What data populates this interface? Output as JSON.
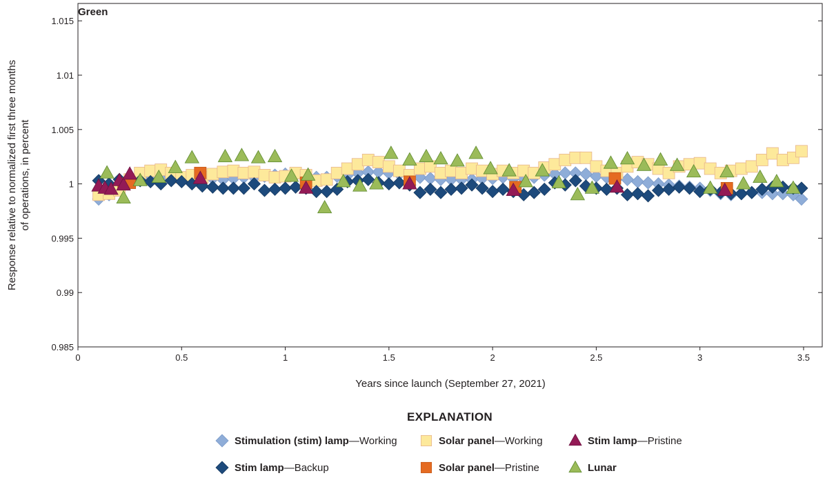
{
  "chart_data": {
    "type": "scatter",
    "title": "Green",
    "xlabel": "Years since launch (September 27, 2021)",
    "ylabel": [
      "Response relative to normalized first three months",
      "of operations, in percent"
    ],
    "xlim": [
      0,
      3.59
    ],
    "ylim": [
      0.985,
      1.0166
    ],
    "xticks": [
      0,
      0.5,
      1,
      1.5,
      2,
      2.5,
      3,
      3.5
    ],
    "xtick_labels": [
      "0",
      "0.5",
      "1",
      "1.5",
      "2",
      "2.5",
      "3",
      "3.5"
    ],
    "yticks": [
      0.985,
      0.99,
      0.995,
      1,
      1.005,
      1.01,
      1.015
    ],
    "ytick_labels": [
      "0.985",
      "0.99",
      "0.995",
      "1",
      "1.005",
      "1.01",
      "1.015"
    ],
    "grid": false,
    "legend": {
      "title": "EXPLANATION",
      "placement": "bottom"
    },
    "series": [
      {
        "name": "Stimulation (stim) lamp—Working",
        "name_bold": "Stimulation (stim) lamp",
        "name_rest": "—Working",
        "marker": "diamond",
        "color": "#8fadd8",
        "edge": "#7b9bc9",
        "points": [
          [
            0.1,
            0.9986
          ],
          [
            0.15,
            0.999
          ],
          [
            0.2,
            0.9996
          ],
          [
            0.25,
            1.0001
          ],
          [
            0.3,
            1.0004
          ],
          [
            0.35,
            1.0005
          ],
          [
            0.4,
            1.0005
          ],
          [
            0.45,
            1.0005
          ],
          [
            0.5,
            1.0006
          ],
          [
            0.55,
            1.0006
          ],
          [
            0.6,
            1.0005
          ],
          [
            0.65,
            1.0005
          ],
          [
            0.7,
            1.0004
          ],
          [
            0.75,
            1.0005
          ],
          [
            0.8,
            1.0006
          ],
          [
            0.85,
            1.0006
          ],
          [
            0.9,
            1.0007
          ],
          [
            0.95,
            1.0008
          ],
          [
            1.0,
            1.0009
          ],
          [
            1.05,
            1.0008
          ],
          [
            1.1,
            1.0007
          ],
          [
            1.15,
            1.0006
          ],
          [
            1.2,
            1.0006
          ],
          [
            1.25,
            1.0007
          ],
          [
            1.3,
            1.0008
          ],
          [
            1.35,
            1.001
          ],
          [
            1.4,
            1.0011
          ],
          [
            1.45,
            1.0011
          ],
          [
            1.5,
            1.001
          ],
          [
            1.55,
            1.0009
          ],
          [
            1.6,
            1.0007
          ],
          [
            1.65,
            1.0006
          ],
          [
            1.7,
            1.0005
          ],
          [
            1.75,
            1.0004
          ],
          [
            1.8,
            1.0004
          ],
          [
            1.85,
            1.0004
          ],
          [
            1.9,
            1.0004
          ],
          [
            1.95,
            1.0005
          ],
          [
            2.0,
            1.0005
          ],
          [
            2.05,
            1.0006
          ],
          [
            2.1,
            1.0005
          ],
          [
            2.15,
            1.0005
          ],
          [
            2.2,
            1.0006
          ],
          [
            2.25,
            1.0008
          ],
          [
            2.3,
            1.0009
          ],
          [
            2.35,
            1.001
          ],
          [
            2.4,
            1.001
          ],
          [
            2.45,
            1.0009
          ],
          [
            2.5,
            1.0007
          ],
          [
            2.55,
            1.0006
          ],
          [
            2.6,
            1.0005
          ],
          [
            2.65,
            1.0004
          ],
          [
            2.7,
            1.0002
          ],
          [
            2.75,
            1.0001
          ],
          [
            2.8,
            1.0
          ],
          [
            2.85,
            0.9999
          ],
          [
            2.9,
            0.9998
          ],
          [
            2.95,
            0.9997
          ],
          [
            3.0,
            0.9996
          ],
          [
            3.05,
            0.9994
          ],
          [
            3.1,
            0.9991
          ],
          [
            3.15,
            0.999
          ],
          [
            3.2,
            0.9991
          ],
          [
            3.25,
            0.9992
          ],
          [
            3.3,
            0.9992
          ],
          [
            3.35,
            0.9991
          ],
          [
            3.4,
            0.9991
          ],
          [
            3.45,
            0.999
          ],
          [
            3.49,
            0.9986
          ]
        ]
      },
      {
        "name": "Solar panel—Working",
        "name_bold": "Solar panel",
        "name_rest": "—Working",
        "marker": "square",
        "color": "#fde99b",
        "edge": "#e7b48c",
        "points": [
          [
            0.1,
            0.999
          ],
          [
            0.15,
            0.9991
          ],
          [
            0.2,
            0.9994
          ],
          [
            0.25,
            1.0004
          ],
          [
            0.3,
            1.001
          ],
          [
            0.35,
            1.0012
          ],
          [
            0.4,
            1.0013
          ],
          [
            0.45,
            1.001
          ],
          [
            0.5,
            1.0006
          ],
          [
            0.55,
            1.0008
          ],
          [
            0.6,
            1.0006
          ],
          [
            0.65,
            1.0009
          ],
          [
            0.7,
            1.0011
          ],
          [
            0.75,
            1.0012
          ],
          [
            0.8,
            1.001
          ],
          [
            0.85,
            1.0011
          ],
          [
            0.9,
            1.0008
          ],
          [
            0.95,
            1.0006
          ],
          [
            1.0,
            1.0007
          ],
          [
            1.05,
            1.001
          ],
          [
            1.1,
            1.0008
          ],
          [
            1.15,
            1.0003
          ],
          [
            1.2,
            1.0004
          ],
          [
            1.25,
            1.001
          ],
          [
            1.3,
            1.0014
          ],
          [
            1.35,
            1.0018
          ],
          [
            1.4,
            1.0022
          ],
          [
            1.45,
            1.002
          ],
          [
            1.5,
            1.0016
          ],
          [
            1.55,
            1.0012
          ],
          [
            1.6,
            1.0008
          ],
          [
            1.65,
            1.0014
          ],
          [
            1.7,
            1.0016
          ],
          [
            1.75,
            1.001
          ],
          [
            1.8,
            1.0012
          ],
          [
            1.85,
            1.001
          ],
          [
            1.9,
            1.0014
          ],
          [
            1.95,
            1.0012
          ],
          [
            2.0,
            1.0009
          ],
          [
            2.05,
            1.0012
          ],
          [
            2.1,
            1.001
          ],
          [
            2.15,
            1.0012
          ],
          [
            2.2,
            1.001
          ],
          [
            2.25,
            1.0015
          ],
          [
            2.3,
            1.0018
          ],
          [
            2.35,
            1.0022
          ],
          [
            2.4,
            1.0024
          ],
          [
            2.45,
            1.0024
          ],
          [
            2.5,
            1.0016
          ],
          [
            2.55,
            1.0012
          ],
          [
            2.6,
            1.001
          ],
          [
            2.65,
            1.0016
          ],
          [
            2.7,
            1.002
          ],
          [
            2.75,
            1.0018
          ],
          [
            2.8,
            1.0014
          ],
          [
            2.85,
            1.001
          ],
          [
            2.9,
            1.0016
          ],
          [
            2.95,
            1.0018
          ],
          [
            3.0,
            1.0019
          ],
          [
            3.05,
            1.0014
          ],
          [
            3.1,
            1.001
          ],
          [
            3.15,
            1.0012
          ],
          [
            3.2,
            1.0014
          ],
          [
            3.25,
            1.0016
          ],
          [
            3.3,
            1.0022
          ],
          [
            3.35,
            1.0028
          ],
          [
            3.4,
            1.0022
          ],
          [
            3.45,
            1.0024
          ],
          [
            3.49,
            1.003
          ]
        ]
      },
      {
        "name": "Stim lamp—Backup",
        "name_bold": "Stim lamp",
        "name_rest": "—Backup",
        "marker": "diamond",
        "color": "#1d4a7c",
        "edge": "#163a62",
        "points": [
          [
            0.1,
            1.0003
          ],
          [
            0.15,
            1.0
          ],
          [
            0.2,
            1.0004
          ],
          [
            0.25,
            1.0002
          ],
          [
            0.3,
            1.0003
          ],
          [
            0.35,
            1.0002
          ],
          [
            0.4,
            1.0
          ],
          [
            0.45,
            1.0003
          ],
          [
            0.5,
            1.0002
          ],
          [
            0.55,
            1.0
          ],
          [
            0.6,
            0.9998
          ],
          [
            0.65,
            0.9997
          ],
          [
            0.7,
            0.9996
          ],
          [
            0.75,
            0.9996
          ],
          [
            0.8,
            0.9996
          ],
          [
            0.85,
            1.0
          ],
          [
            0.9,
            0.9994
          ],
          [
            0.95,
            0.9995
          ],
          [
            1.0,
            0.9996
          ],
          [
            1.05,
            0.9997
          ],
          [
            1.1,
            0.9996
          ],
          [
            1.15,
            0.9993
          ],
          [
            1.2,
            0.9993
          ],
          [
            1.25,
            0.9995
          ],
          [
            1.3,
            1.0002
          ],
          [
            1.35,
            1.0003
          ],
          [
            1.4,
            1.0004
          ],
          [
            1.45,
            1.0001
          ],
          [
            1.5,
            1.0
          ],
          [
            1.55,
            1.0001
          ],
          [
            1.6,
            0.9999
          ],
          [
            1.65,
            0.9992
          ],
          [
            1.7,
            0.9995
          ],
          [
            1.75,
            0.9992
          ],
          [
            1.8,
            0.9995
          ],
          [
            1.85,
            0.9996
          ],
          [
            1.9,
            0.9999
          ],
          [
            1.95,
            0.9996
          ],
          [
            2.0,
            0.9993
          ],
          [
            2.05,
            0.9995
          ],
          [
            2.1,
            0.9993
          ],
          [
            2.15,
            0.999
          ],
          [
            2.2,
            0.9992
          ],
          [
            2.25,
            0.9995
          ],
          [
            2.3,
            1.0001
          ],
          [
            2.35,
            0.9999
          ],
          [
            2.4,
            1.0003
          ],
          [
            2.45,
            0.9998
          ],
          [
            2.5,
            0.9996
          ],
          [
            2.55,
            0.9995
          ],
          [
            2.6,
            0.9996
          ],
          [
            2.65,
            0.999
          ],
          [
            2.7,
            0.9991
          ],
          [
            2.75,
            0.9989
          ],
          [
            2.8,
            0.9994
          ],
          [
            2.85,
            0.9995
          ],
          [
            2.9,
            0.9997
          ],
          [
            2.95,
            0.9996
          ],
          [
            3.0,
            0.9993
          ],
          [
            3.05,
            0.9995
          ],
          [
            3.1,
            0.9992
          ],
          [
            3.15,
            0.9991
          ],
          [
            3.2,
            0.9991
          ],
          [
            3.25,
            0.9992
          ],
          [
            3.3,
            0.9995
          ],
          [
            3.35,
            0.9997
          ],
          [
            3.4,
            0.9997
          ],
          [
            3.45,
            0.9996
          ],
          [
            3.49,
            0.9996
          ]
        ]
      },
      {
        "name": "Solar panel—Pristine",
        "name_bold": "Solar panel",
        "name_rest": "—Pristine",
        "marker": "square",
        "color": "#e56b22",
        "edge": "#c55a1a",
        "points": [
          [
            0.22,
            1.0
          ],
          [
            0.25,
            1.0001
          ],
          [
            0.59,
            1.001
          ],
          [
            1.1,
            1.0001
          ],
          [
            1.6,
            1.0002
          ],
          [
            2.11,
            0.9997
          ],
          [
            2.59,
            1.0005
          ],
          [
            3.13,
            0.9996
          ]
        ]
      },
      {
        "name": "Stim lamp—Pristine",
        "name_bold": "Stim lamp",
        "name_rest": "—Pristine",
        "marker": "triangle",
        "color": "#931a56",
        "edge": "#6e1140",
        "points": [
          [
            0.1,
            0.9998
          ],
          [
            0.13,
            0.9996
          ],
          [
            0.16,
            0.9995
          ],
          [
            0.2,
            1.0003
          ],
          [
            0.22,
            0.9999
          ],
          [
            0.25,
            1.0009
          ],
          [
            0.59,
            1.0005
          ],
          [
            1.1,
            0.9996
          ],
          [
            1.6,
            1.0
          ],
          [
            2.1,
            0.9994
          ],
          [
            2.6,
            0.9997
          ],
          [
            3.12,
            0.9994
          ]
        ]
      },
      {
        "name": "Lunar",
        "name_bold": "Lunar",
        "name_rest": "",
        "marker": "triangle",
        "color": "#9bbb59",
        "edge": "#5d8a2e",
        "points": [
          [
            0.14,
            1.001
          ],
          [
            0.22,
            0.9987
          ],
          [
            0.3,
            1.0003
          ],
          [
            0.39,
            1.0006
          ],
          [
            0.47,
            1.0015
          ],
          [
            0.55,
            1.0024
          ],
          [
            0.71,
            1.0025
          ],
          [
            0.79,
            1.0026
          ],
          [
            0.87,
            1.0024
          ],
          [
            0.95,
            1.0025
          ],
          [
            1.03,
            1.0007
          ],
          [
            1.11,
            1.0008
          ],
          [
            1.19,
            0.9978
          ],
          [
            1.28,
            1.0002
          ],
          [
            1.36,
            0.9998
          ],
          [
            1.44,
            1.0
          ],
          [
            1.51,
            1.0028
          ],
          [
            1.6,
            1.0022
          ],
          [
            1.68,
            1.0025
          ],
          [
            1.75,
            1.0023
          ],
          [
            1.83,
            1.0021
          ],
          [
            1.92,
            1.0028
          ],
          [
            1.99,
            1.0014
          ],
          [
            2.08,
            1.0012
          ],
          [
            2.16,
            1.0002
          ],
          [
            2.24,
            1.0012
          ],
          [
            2.32,
            1.0001
          ],
          [
            2.41,
            0.999
          ],
          [
            2.48,
            0.9996
          ],
          [
            2.57,
            1.0019
          ],
          [
            2.65,
            1.0023
          ],
          [
            2.73,
            1.0017
          ],
          [
            2.81,
            1.0022
          ],
          [
            2.89,
            1.0017
          ],
          [
            2.97,
            1.0011
          ],
          [
            3.05,
            0.9996
          ],
          [
            3.13,
            1.0011
          ],
          [
            3.21,
            1.0
          ],
          [
            3.29,
            1.0006
          ],
          [
            3.37,
            1.0002
          ],
          [
            3.45,
            0.9996
          ]
        ]
      }
    ],
    "legend_order": [
      0,
      1,
      4,
      2,
      3,
      5
    ]
  }
}
